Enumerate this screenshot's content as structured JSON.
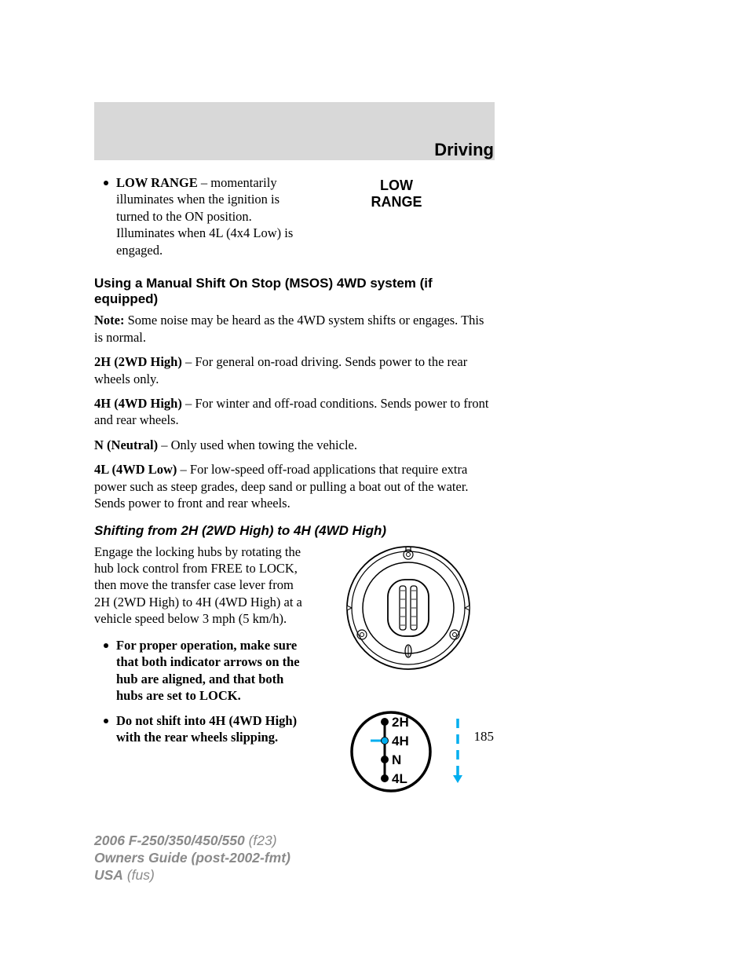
{
  "header": {
    "title": "Driving"
  },
  "indicator": {
    "label": "LOW RANGE",
    "bullet_label": "LOW RANGE",
    "bullet_text": "– momentarily illuminates when the ignition is turned to the ON position. Illuminates when 4L (4x4 Low) is engaged."
  },
  "section1": {
    "heading": "Using a Manual Shift On Stop (MSOS) 4WD system (if equipped)",
    "note_label": "Note:",
    "note_text": "Some noise may be heard as the 4WD system shifts or engages. This is normal.",
    "modes": [
      {
        "label": "2H (2WD High)",
        "text": "– For general on-road driving. Sends power to the rear wheels only."
      },
      {
        "label": "4H (4WD High)",
        "text": "– For winter and off-road conditions. Sends power to front and rear wheels."
      },
      {
        "label": "N (Neutral)",
        "text": "– Only used when towing the vehicle."
      },
      {
        "label": "4L (4WD Low)",
        "text": "– For low-speed off-road applications that require extra power such as steep grades, deep sand or pulling a boat out of the water. Sends power to front and rear wheels."
      }
    ]
  },
  "section2": {
    "heading": "Shifting from 2H (2WD High) to 4H (4WD High)",
    "intro": "Engage the locking hubs by rotating the hub lock control from FREE to LOCK, then move the transfer case lever from 2H (2WD High) to 4H (4WD High) at a vehicle speed below 3 mph (5 km/h).",
    "bullets": [
      "For proper operation, make sure that both indicator arrows on the hub are aligned, and that both hubs are set to LOCK.",
      "Do not shift into 4H (4WD High) with the rear wheels slipping."
    ]
  },
  "shift_diagram": {
    "positions": [
      "2H",
      "4H",
      "N",
      "4L"
    ],
    "selected_index": 1,
    "colors": {
      "stroke": "#000000",
      "selected_fill": "#00aeef",
      "arrow": "#00aeef"
    }
  },
  "hub_diagram": {
    "brand_vertical": "FORD",
    "colors": {
      "stroke": "#000000",
      "fill": "#ffffff"
    }
  },
  "page_number": "185",
  "footer": {
    "line1_bold": "2006 F-250/350/450/550",
    "line1_rest": "(f23)",
    "line2": "Owners Guide (post-2002-fmt)",
    "line3_bold": "USA",
    "line3_rest": "(fus)"
  }
}
